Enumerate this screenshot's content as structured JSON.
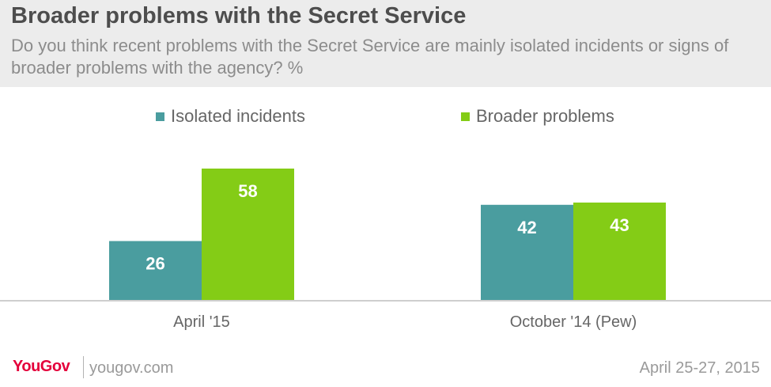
{
  "header": {
    "title": "Broader problems with the Secret Service",
    "subtitle": "Do you think recent problems with the Secret Service are mainly isolated incidents or signs of broader problems with the agency? %"
  },
  "colors": {
    "series_isolated": "#4a9d9f",
    "series_broader": "#84cc16",
    "value_label": "#ffffff",
    "axis_label": "#666666",
    "baseline": "#cfcfcf"
  },
  "chart_data": {
    "type": "bar",
    "title": "Broader problems with the Secret Service",
    "categories": [
      "April '15",
      "October '14 (Pew)"
    ],
    "series": [
      {
        "name": "Isolated incidents",
        "values": [
          26,
          42
        ]
      },
      {
        "name": "Broader problems",
        "values": [
          58,
          43
        ]
      }
    ],
    "xlabel": "",
    "ylabel": "%",
    "ylim": [
      0,
      58
    ],
    "grid": false,
    "legend": "top-center"
  },
  "footer": {
    "brand": "YouGov",
    "site": "yougov.com",
    "date": "April 25-27, 2015"
  }
}
